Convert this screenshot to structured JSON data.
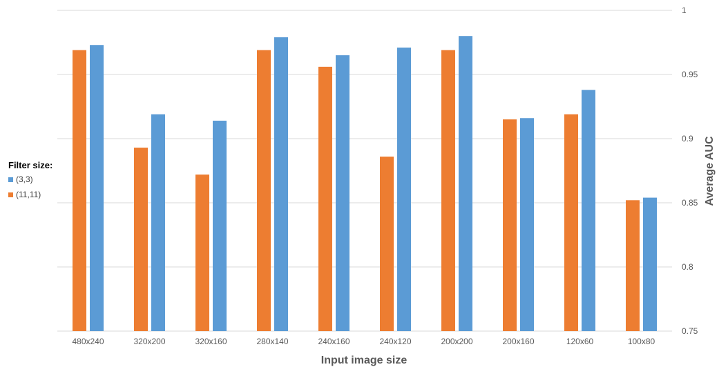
{
  "chart_data": {
    "type": "bar",
    "title": "",
    "xlabel": "Input image size",
    "ylabel": "Average AUC",
    "categories": [
      "480x240",
      "320x200",
      "320x160",
      "280x140",
      "240x160",
      "240x120",
      "200x200",
      "200x160",
      "120x60",
      "100x80"
    ],
    "series": [
      {
        "name": "(11,11)",
        "color": "#ED7D31",
        "values": [
          0.969,
          0.893,
          0.872,
          0.969,
          0.956,
          0.886,
          0.969,
          0.915,
          0.919,
          0.852
        ]
      },
      {
        "name": "(3,3)",
        "color": "#5B9BD5",
        "values": [
          0.973,
          0.919,
          0.914,
          0.979,
          0.965,
          0.971,
          0.98,
          0.916,
          0.938,
          0.854
        ]
      }
    ],
    "ylim": [
      0.75,
      1
    ],
    "yticks": [
      "0.75",
      "0.8",
      "0.85",
      "0.9",
      "0.95",
      "1"
    ],
    "y_axis_side": "right",
    "grid": true,
    "legend": {
      "title": "Filter size:",
      "placement": "left",
      "entries": [
        {
          "label": "(3,3)",
          "color": "#5B9BD5"
        },
        {
          "label": "(11,11)",
          "color": "#ED7D31"
        }
      ]
    }
  }
}
